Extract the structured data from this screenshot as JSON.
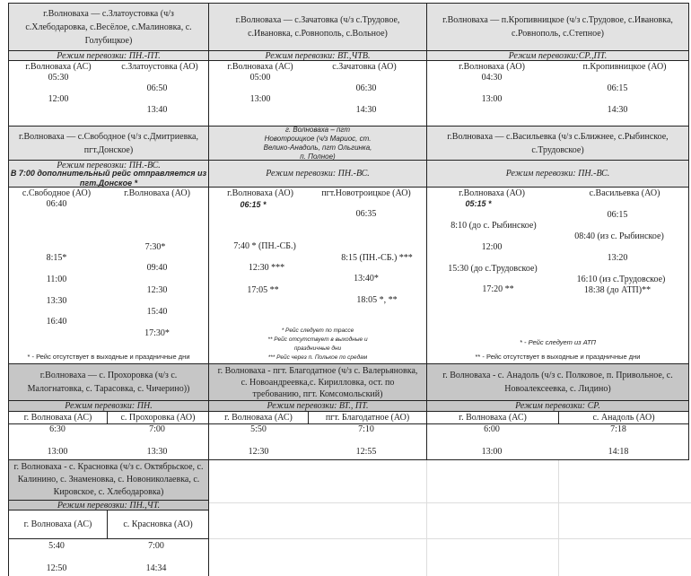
{
  "routes": [
    {
      "title": "г.Волноваха — с.Златоустовка (ч/з с.Хлебодаровка,  с.Весёлое, с.Малиновка, с. Голубицкое)",
      "regime": "Режим перевозки: ПН.-ПТ.",
      "from": "г.Волноваха (АС)",
      "to": "с.Златоустовка (АО)",
      "times": [
        "05:30",
        "06:50",
        "12:00",
        "13:40"
      ]
    },
    {
      "title": "г.Волноваха — с.Зачатовка (ч/з с.Трудовое, с.Ивановка, с.Ровнополь, с.Вольное)",
      "regime": "Режим перевозки: ВТ.,ЧТВ.",
      "from": "г.Волноваха (АС)",
      "to": "с.Зачатовка (АО)",
      "times": [
        "05:00",
        "06:30",
        "13:00",
        "14:30"
      ]
    },
    {
      "title": "г.Волноваха — п.Кропивницкое (ч/з с.Трудовое, с.Ивановка, с.Ровнополь, с.Степное)",
      "regime": "Режим перевозки:СР.,ПТ.",
      "from": "г.Волноваха (АО)",
      "to": "п.Кропивницкое (АО)",
      "times": [
        "04:30",
        "06:15",
        "13:00",
        "14:30"
      ]
    },
    {
      "title": "г.Волноваха — с.Свободное (ч/з с.Дмитриевка, пгт.Донское)",
      "regime": "Режим перевозки: ПН.-ВС.",
      "note": "В 7:00 дополнительный рейс отправляется из пгт.Донское *",
      "from": "с.Свободное (АО)",
      "to": "г.Волноваха (АО)",
      "times": [
        "06:40",
        "7:30*",
        "8:15*",
        "09:40",
        "11:00",
        "12:30",
        "13:30",
        "15:40",
        "16:40",
        "17:30*"
      ],
      "footnotes": [
        "* - Рейс отсутствует в выходные и праздничные дни"
      ]
    },
    {
      "title": "г. Волноваха – пгт Новотроицкое (ч/з Мариос, ст. Велико-Анадоль, пгт Ольгинка, п. Полное)",
      "regime": "Режим перевозки: ПН.-ВС.",
      "from": "г.Волноваха (АО)",
      "to": "пгт.Новотроицкое (АО)",
      "times": [
        "06:15 *",
        "06:35",
        "7:40 * (ПН.-СБ.)",
        "8:15 (ПН.-СБ.) ***",
        "12:30 ***",
        "13:40*",
        "17:05 **",
        "18:05 *, **"
      ],
      "footnotes": [
        "* Рейс следует по трассе",
        "** Рейс отсутствует в выходные и праздничные дни",
        "*** Рейс через п. Полькое по средам"
      ]
    },
    {
      "title": "г.Волноваха — с.Васильевка (ч/з с.Ближнее, с.Рыбинское, с.Трудовское)",
      "regime": "Режим перевозки: ПН.-ВС.",
      "from": "г.Волноваха (АО)",
      "to": "с.Васильевка (АО)",
      "times": [
        "05:15 *",
        "06:15",
        "8:10 (до с. Рыбинское)",
        "08:40 (из с. Рыбинское)",
        "12:00",
        "13:20",
        "15:30 (до с.Трудовское)",
        "16:10  (из с.Трудовское)",
        "17:20 **",
        "18:38 (до АТП)**"
      ],
      "footnotes": [
        "* - Рейс следует из АТП",
        "** - Рейс отсутствует в выходные и праздничные дни"
      ]
    },
    {
      "title": "г.Волноваха — с. Прохоровка (ч/з с. Малогнатовка, с. Тарасовка, с. Чичерино))",
      "regime": "Режим перевозки:  ПН.",
      "from": "г. Волноваха (АС)",
      "to": "с. Прохоровка (АО)",
      "times": [
        "6:30",
        "7:00",
        "13:00",
        "13:30"
      ]
    },
    {
      "title": "г. Волноваха - пгт. Благодатное (ч/з с. Валерьяновка, с. Новоандреевка,с. Кирилловка, ост. по требованию, пгт. Комсомольский)",
      "regime": "Режим перевозки:  ВТ., ПТ.",
      "from": "г. Волноваха (АС)",
      "to": "пгт. Благодатное (АО)",
      "times": [
        "5:50",
        "7:10",
        "12:30",
        "12:55"
      ]
    },
    {
      "title": "г. Волноваха - с. Анадоль (ч/з с. Полковое, п. Привольное, с. Новоалексеевка, с. Лидино)",
      "regime": "Режим перевозки:  СР.",
      "from": "г. Волноваха (АС)",
      "to": "с. Анадоль (АО)",
      "times": [
        "6:00",
        "7:18",
        "13:00",
        "14:18"
      ]
    },
    {
      "title": "г. Волноваха - с. Красновка (ч/з с. Октябрьское, с. Калинино, с. Знаменовка, с. Новониколаевка, с. Кировское,  с. Хлебодаровка)",
      "regime": "Режим перевозки:  ПН.,ЧТ.",
      "from": "г. Волноваха (АС)",
      "to": "с. Красновка (АО)",
      "times": [
        "5:40",
        "7:00",
        "12:50",
        "14:34"
      ]
    }
  ]
}
